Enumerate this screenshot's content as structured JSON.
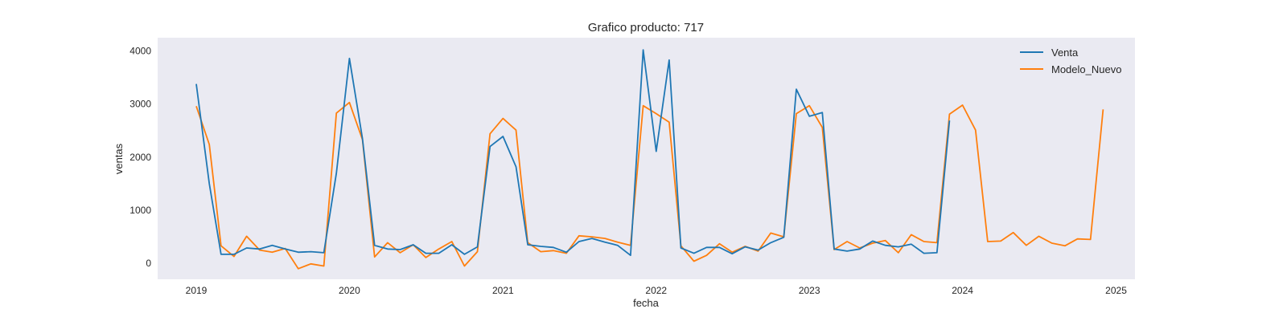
{
  "chart_data": {
    "type": "line",
    "title": "Grafico producto: 717",
    "xlabel": "fecha",
    "ylabel": "ventas",
    "xlim": [
      "2018-10-01",
      "2025-02-15"
    ],
    "ylim": [
      -300,
      4250
    ],
    "x_ticks": [
      "2019",
      "2020",
      "2021",
      "2022",
      "2023",
      "2024",
      "2025"
    ],
    "y_ticks": [
      "0",
      "1000",
      "2000",
      "3000",
      "4000"
    ],
    "y_tick_values": [
      0,
      1000,
      2000,
      3000,
      4000
    ],
    "grid": false,
    "legend_position": "top-right",
    "start": "2019-01",
    "series": [
      {
        "name": "Venta",
        "color": "#1f77b4",
        "values": [
          3380,
          1500,
          170,
          170,
          290,
          270,
          340,
          270,
          210,
          220,
          200,
          1700,
          3860,
          2350,
          340,
          270,
          260,
          350,
          190,
          190,
          350,
          170,
          310,
          2200,
          2390,
          1820,
          350,
          320,
          300,
          210,
          410,
          470,
          400,
          340,
          150,
          4020,
          2110,
          3830,
          290,
          190,
          300,
          300,
          180,
          310,
          250,
          390,
          490,
          3280,
          2770,
          2840,
          270,
          230,
          270,
          420,
          340,
          310,
          360,
          190,
          200,
          2690
        ]
      },
      {
        "name": "Modelo_Nuevo",
        "color": "#ff7f0e",
        "values": [
          2960,
          2240,
          330,
          130,
          510,
          250,
          210,
          280,
          -100,
          -10,
          -50,
          2830,
          3030,
          2330,
          120,
          390,
          200,
          350,
          110,
          270,
          410,
          -50,
          220,
          2440,
          2730,
          2510,
          390,
          220,
          240,
          190,
          520,
          500,
          470,
          400,
          340,
          2970,
          2820,
          2660,
          330,
          40,
          150,
          370,
          210,
          320,
          230,
          570,
          500,
          2820,
          2970,
          2560,
          260,
          410,
          290,
          380,
          430,
          200,
          540,
          410,
          390,
          2810,
          2980,
          2510,
          410,
          420,
          580,
          340,
          510,
          380,
          330,
          460,
          450,
          2900
        ]
      }
    ]
  }
}
